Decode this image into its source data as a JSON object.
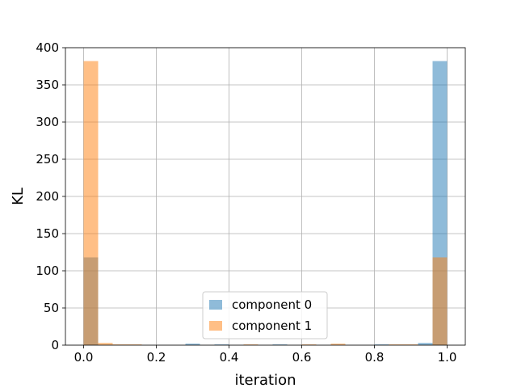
{
  "chart_data": {
    "type": "bar",
    "title": "",
    "xlabel": "iteration",
    "ylabel": "KL",
    "xlim": [
      -0.05,
      1.05
    ],
    "ylim": [
      0,
      400
    ],
    "xticks": [
      "0.0",
      "0.2",
      "0.4",
      "0.6",
      "0.8",
      "1.0"
    ],
    "yticks": [
      "0",
      "50",
      "100",
      "150",
      "200",
      "250",
      "300",
      "350",
      "400"
    ],
    "grid": true,
    "legend_position": "bottom-center",
    "series": [
      {
        "name": "component 0",
        "color": "#1f77b4",
        "opacity": 0.5,
        "bins": [
          {
            "x0": 0.0,
            "x1": 0.04,
            "value": 118
          },
          {
            "x0": 0.28,
            "x1": 0.32,
            "value": 2
          },
          {
            "x0": 0.36,
            "x1": 0.4,
            "value": 1
          },
          {
            "x0": 0.52,
            "x1": 0.56,
            "value": 1
          },
          {
            "x0": 0.8,
            "x1": 0.84,
            "value": 1
          },
          {
            "x0": 0.92,
            "x1": 0.96,
            "value": 3
          },
          {
            "x0": 0.96,
            "x1": 1.0,
            "value": 382
          }
        ]
      },
      {
        "name": "component 1",
        "color": "#ff7f0e",
        "opacity": 0.5,
        "bins": [
          {
            "x0": 0.0,
            "x1": 0.04,
            "value": 382
          },
          {
            "x0": 0.04,
            "x1": 0.08,
            "value": 3
          },
          {
            "x0": 0.08,
            "x1": 0.16,
            "value": 1
          },
          {
            "x0": 0.44,
            "x1": 0.48,
            "value": 1
          },
          {
            "x0": 0.6,
            "x1": 0.64,
            "value": 1
          },
          {
            "x0": 0.68,
            "x1": 0.72,
            "value": 2
          },
          {
            "x0": 0.84,
            "x1": 0.92,
            "value": 1
          },
          {
            "x0": 0.96,
            "x1": 1.0,
            "value": 118
          }
        ]
      }
    ]
  }
}
